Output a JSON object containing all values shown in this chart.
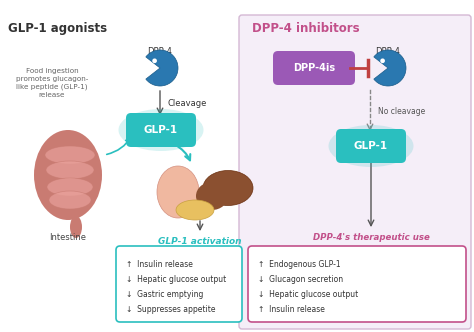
{
  "title_left": "GLP-1 agonists",
  "title_right": "DPP-4 inhibitors",
  "title_left_color": "#333333",
  "title_right_color": "#c2508a",
  "right_panel_color": "#f5eef8",
  "right_panel_border": "#d4b8d4",
  "glp1_pill_color": "#2abfbf",
  "glp1_pill_text": "GLP-1",
  "dpp4is_pill_color": "#9b59b6",
  "dpp4is_pill_text": "DPP-4is",
  "dpp4_label": "DPP-4",
  "cleavage_label": "Cleavage",
  "no_cleavage_label": "No cleavage",
  "glp1_activation_label": "GLP-1 activation",
  "glp1_activation_color": "#2abfbf",
  "therapeutic_label": "DPP-4's therapeutic use",
  "therapeutic_color": "#c2508a",
  "intestine_text": "Intestine",
  "food_text": "Food ingestion\npromotes glucagon-\nlike peptide (GLP-1)\nrelease",
  "left_box_items": [
    "↑  Insulin release",
    "↓  Hepatic glucose output",
    "↓  Gastric emptying",
    "↓  Suppresses appetite"
  ],
  "right_box_items": [
    "↑  Endogenous GLP-1",
    "↓  Glucagon secretion",
    "↓  Hepatic glucose output",
    "↑  Insulin release"
  ],
  "left_box_border": "#2abfbf",
  "right_box_border": "#c2508a",
  "arrow_teal": "#2abfbf",
  "arrow_dark": "#555555",
  "intestine_color_outer": "#c97b72",
  "intestine_color_inner": "#e8a09a",
  "pacman_color": "#2a78b0"
}
